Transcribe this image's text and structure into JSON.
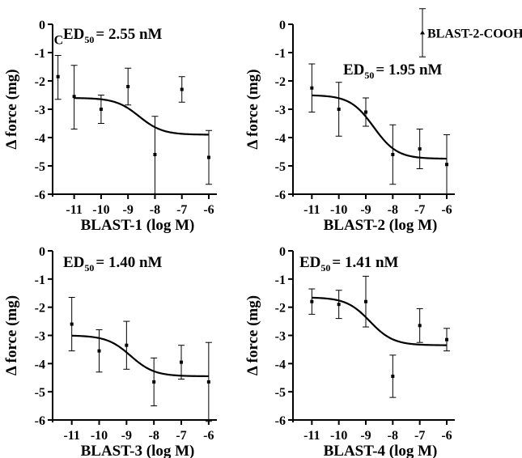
{
  "chart_data": [
    {
      "type": "scatter",
      "panel": "BLAST-1",
      "xlabel": "BLAST-1 (log M)",
      "ylabel": "Δ force (mg)",
      "x_ticks": [
        "-11",
        "-10",
        "-9",
        "-8",
        "-7",
        "-6"
      ],
      "y_ticks": [
        "0",
        "-1",
        "-2",
        "-3",
        "-4",
        "-5",
        "-6"
      ],
      "xlim": [
        -11.8,
        -5.7
      ],
      "ylim": [
        -6,
        0
      ],
      "ed50_prefix": "ED",
      "ed50_sub": "50",
      "ed50_value": "= 2.55 nM",
      "control_label": "C",
      "control": {
        "x": -11.6,
        "y": -1.85,
        "err_lo": 0.8,
        "err_hi": 0.75
      },
      "points": [
        {
          "x": -11,
          "y": -2.55,
          "err_lo": 1.15,
          "err_hi": 1.1
        },
        {
          "x": -10,
          "y": -3.0,
          "err_lo": 0.5,
          "err_hi": 0.5
        },
        {
          "x": -9,
          "y": -2.2,
          "err_lo": 0.65,
          "err_hi": 0.65
        },
        {
          "x": -8,
          "y": -4.6,
          "err_lo": 1.4,
          "err_hi": 1.35
        },
        {
          "x": -7,
          "y": -2.3,
          "err_lo": 0.45,
          "err_hi": 0.45
        },
        {
          "x": -6,
          "y": -4.7,
          "err_lo": 0.95,
          "err_hi": 0.95
        }
      ],
      "fit": {
        "top": -2.6,
        "bottom": -3.9,
        "logEC50": -8.59
      }
    },
    {
      "type": "scatter",
      "panel": "BLAST-2",
      "xlabel": "BLAST-2 (log M)",
      "ylabel": "Δ force (mg)",
      "x_ticks": [
        "-11",
        "-10",
        "-9",
        "-8",
        "-7",
        "-6"
      ],
      "y_ticks": [
        "0",
        "-1",
        "-2",
        "-3",
        "-4",
        "-5",
        "-6"
      ],
      "xlim": [
        -11.7,
        -5.7
      ],
      "ylim": [
        -6,
        0
      ],
      "ed50_prefix": "ED",
      "ed50_sub": "50",
      "ed50_value": "= 1.95 nM",
      "legend_label": "BLAST-2-COOH",
      "legend_marker": {
        "x": -6.9,
        "y": -0.3,
        "err_lo": 0.85,
        "err_hi": 0.85
      },
      "points": [
        {
          "x": -11,
          "y": -2.25,
          "err_lo": 0.85,
          "err_hi": 0.85
        },
        {
          "x": -10,
          "y": -3.0,
          "err_lo": 0.95,
          "err_hi": 0.95
        },
        {
          "x": -9,
          "y": -3.1,
          "err_lo": 0.5,
          "err_hi": 0.5
        },
        {
          "x": -8,
          "y": -4.6,
          "err_lo": 1.05,
          "err_hi": 1.05
        },
        {
          "x": -7,
          "y": -4.4,
          "err_lo": 0.7,
          "err_hi": 0.7
        },
        {
          "x": -6,
          "y": -4.95,
          "err_lo": 1.05,
          "err_hi": 1.05
        }
      ],
      "fit": {
        "top": -2.5,
        "bottom": -4.75,
        "logEC50": -8.71
      }
    },
    {
      "type": "scatter",
      "panel": "BLAST-3",
      "xlabel": "BLAST-3 (log M)",
      "ylabel": "Δ force (mg)",
      "x_ticks": [
        "-11",
        "-10",
        "-9",
        "-8",
        "-7",
        "-6"
      ],
      "y_ticks": [
        "0",
        "-1",
        "-2",
        "-3",
        "-4",
        "-5",
        "-6"
      ],
      "xlim": [
        -11.7,
        -5.7
      ],
      "ylim": [
        -6,
        0
      ],
      "ed50_prefix": "ED",
      "ed50_sub": "50",
      "ed50_value": "= 1.40 nM",
      "points": [
        {
          "x": -11,
          "y": -2.6,
          "err_lo": 0.95,
          "err_hi": 0.95
        },
        {
          "x": -10,
          "y": -3.55,
          "err_lo": 0.75,
          "err_hi": 0.75
        },
        {
          "x": -9,
          "y": -3.35,
          "err_lo": 0.85,
          "err_hi": 0.85
        },
        {
          "x": -8,
          "y": -4.65,
          "err_lo": 0.85,
          "err_hi": 0.85
        },
        {
          "x": -7,
          "y": -3.95,
          "err_lo": 0.6,
          "err_hi": 0.6
        },
        {
          "x": -6,
          "y": -4.65,
          "err_lo": 1.4,
          "err_hi": 1.4
        }
      ],
      "fit": {
        "top": -3.0,
        "bottom": -4.45,
        "logEC50": -8.85
      }
    },
    {
      "type": "scatter",
      "panel": "BLAST-4",
      "xlabel": "BLAST-4 (log M)",
      "ylabel": "Δ force (mg)",
      "x_ticks": [
        "-11",
        "-10",
        "-9",
        "-8",
        "-7",
        "-6"
      ],
      "y_ticks": [
        "0",
        "-1",
        "-2",
        "-3",
        "-4",
        "-5",
        "-6"
      ],
      "xlim": [
        -11.7,
        -5.7
      ],
      "ylim": [
        -6,
        0
      ],
      "ed50_prefix": "ED",
      "ed50_sub": "50",
      "ed50_value": "= 1.41 nM",
      "points": [
        {
          "x": -11,
          "y": -1.8,
          "err_lo": 0.45,
          "err_hi": 0.45
        },
        {
          "x": -10,
          "y": -1.9,
          "err_lo": 0.5,
          "err_hi": 0.5
        },
        {
          "x": -9,
          "y": -1.8,
          "err_lo": 0.9,
          "err_hi": 0.9
        },
        {
          "x": -8,
          "y": -4.45,
          "err_lo": 0.75,
          "err_hi": 0.75
        },
        {
          "x": -7,
          "y": -2.65,
          "err_lo": 0.6,
          "err_hi": 0.6
        },
        {
          "x": -6,
          "y": -3.15,
          "err_lo": 0.4,
          "err_hi": 0.4
        }
      ],
      "fit": {
        "top": -1.65,
        "bottom": -3.35,
        "logEC50": -8.85
      }
    }
  ]
}
